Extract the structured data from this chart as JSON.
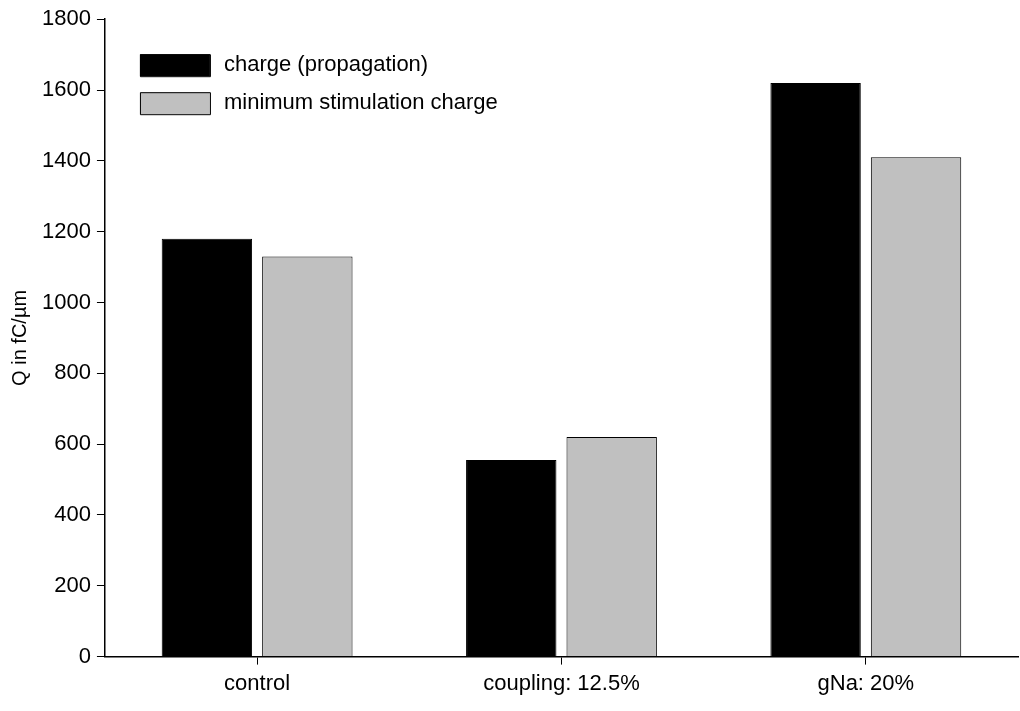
{
  "chart_data": {
    "type": "bar",
    "ylabel": "Q in fC/µm",
    "categories": [
      "control",
      "coupling: 12.5%",
      "gNa: 20%"
    ],
    "series": [
      {
        "name": "charge (propagation)",
        "color": "#000000",
        "values": [
          1180,
          555,
          1620
        ]
      },
      {
        "name": "minimum stimulation charge",
        "color": "#c0c0c0",
        "values": [
          1130,
          620,
          1410
        ]
      }
    ],
    "ylim": [
      0,
      1800
    ],
    "yticks": [
      0,
      200,
      400,
      600,
      800,
      1000,
      1200,
      1400,
      1600,
      1800
    ],
    "grid": false,
    "legend": "top left"
  }
}
